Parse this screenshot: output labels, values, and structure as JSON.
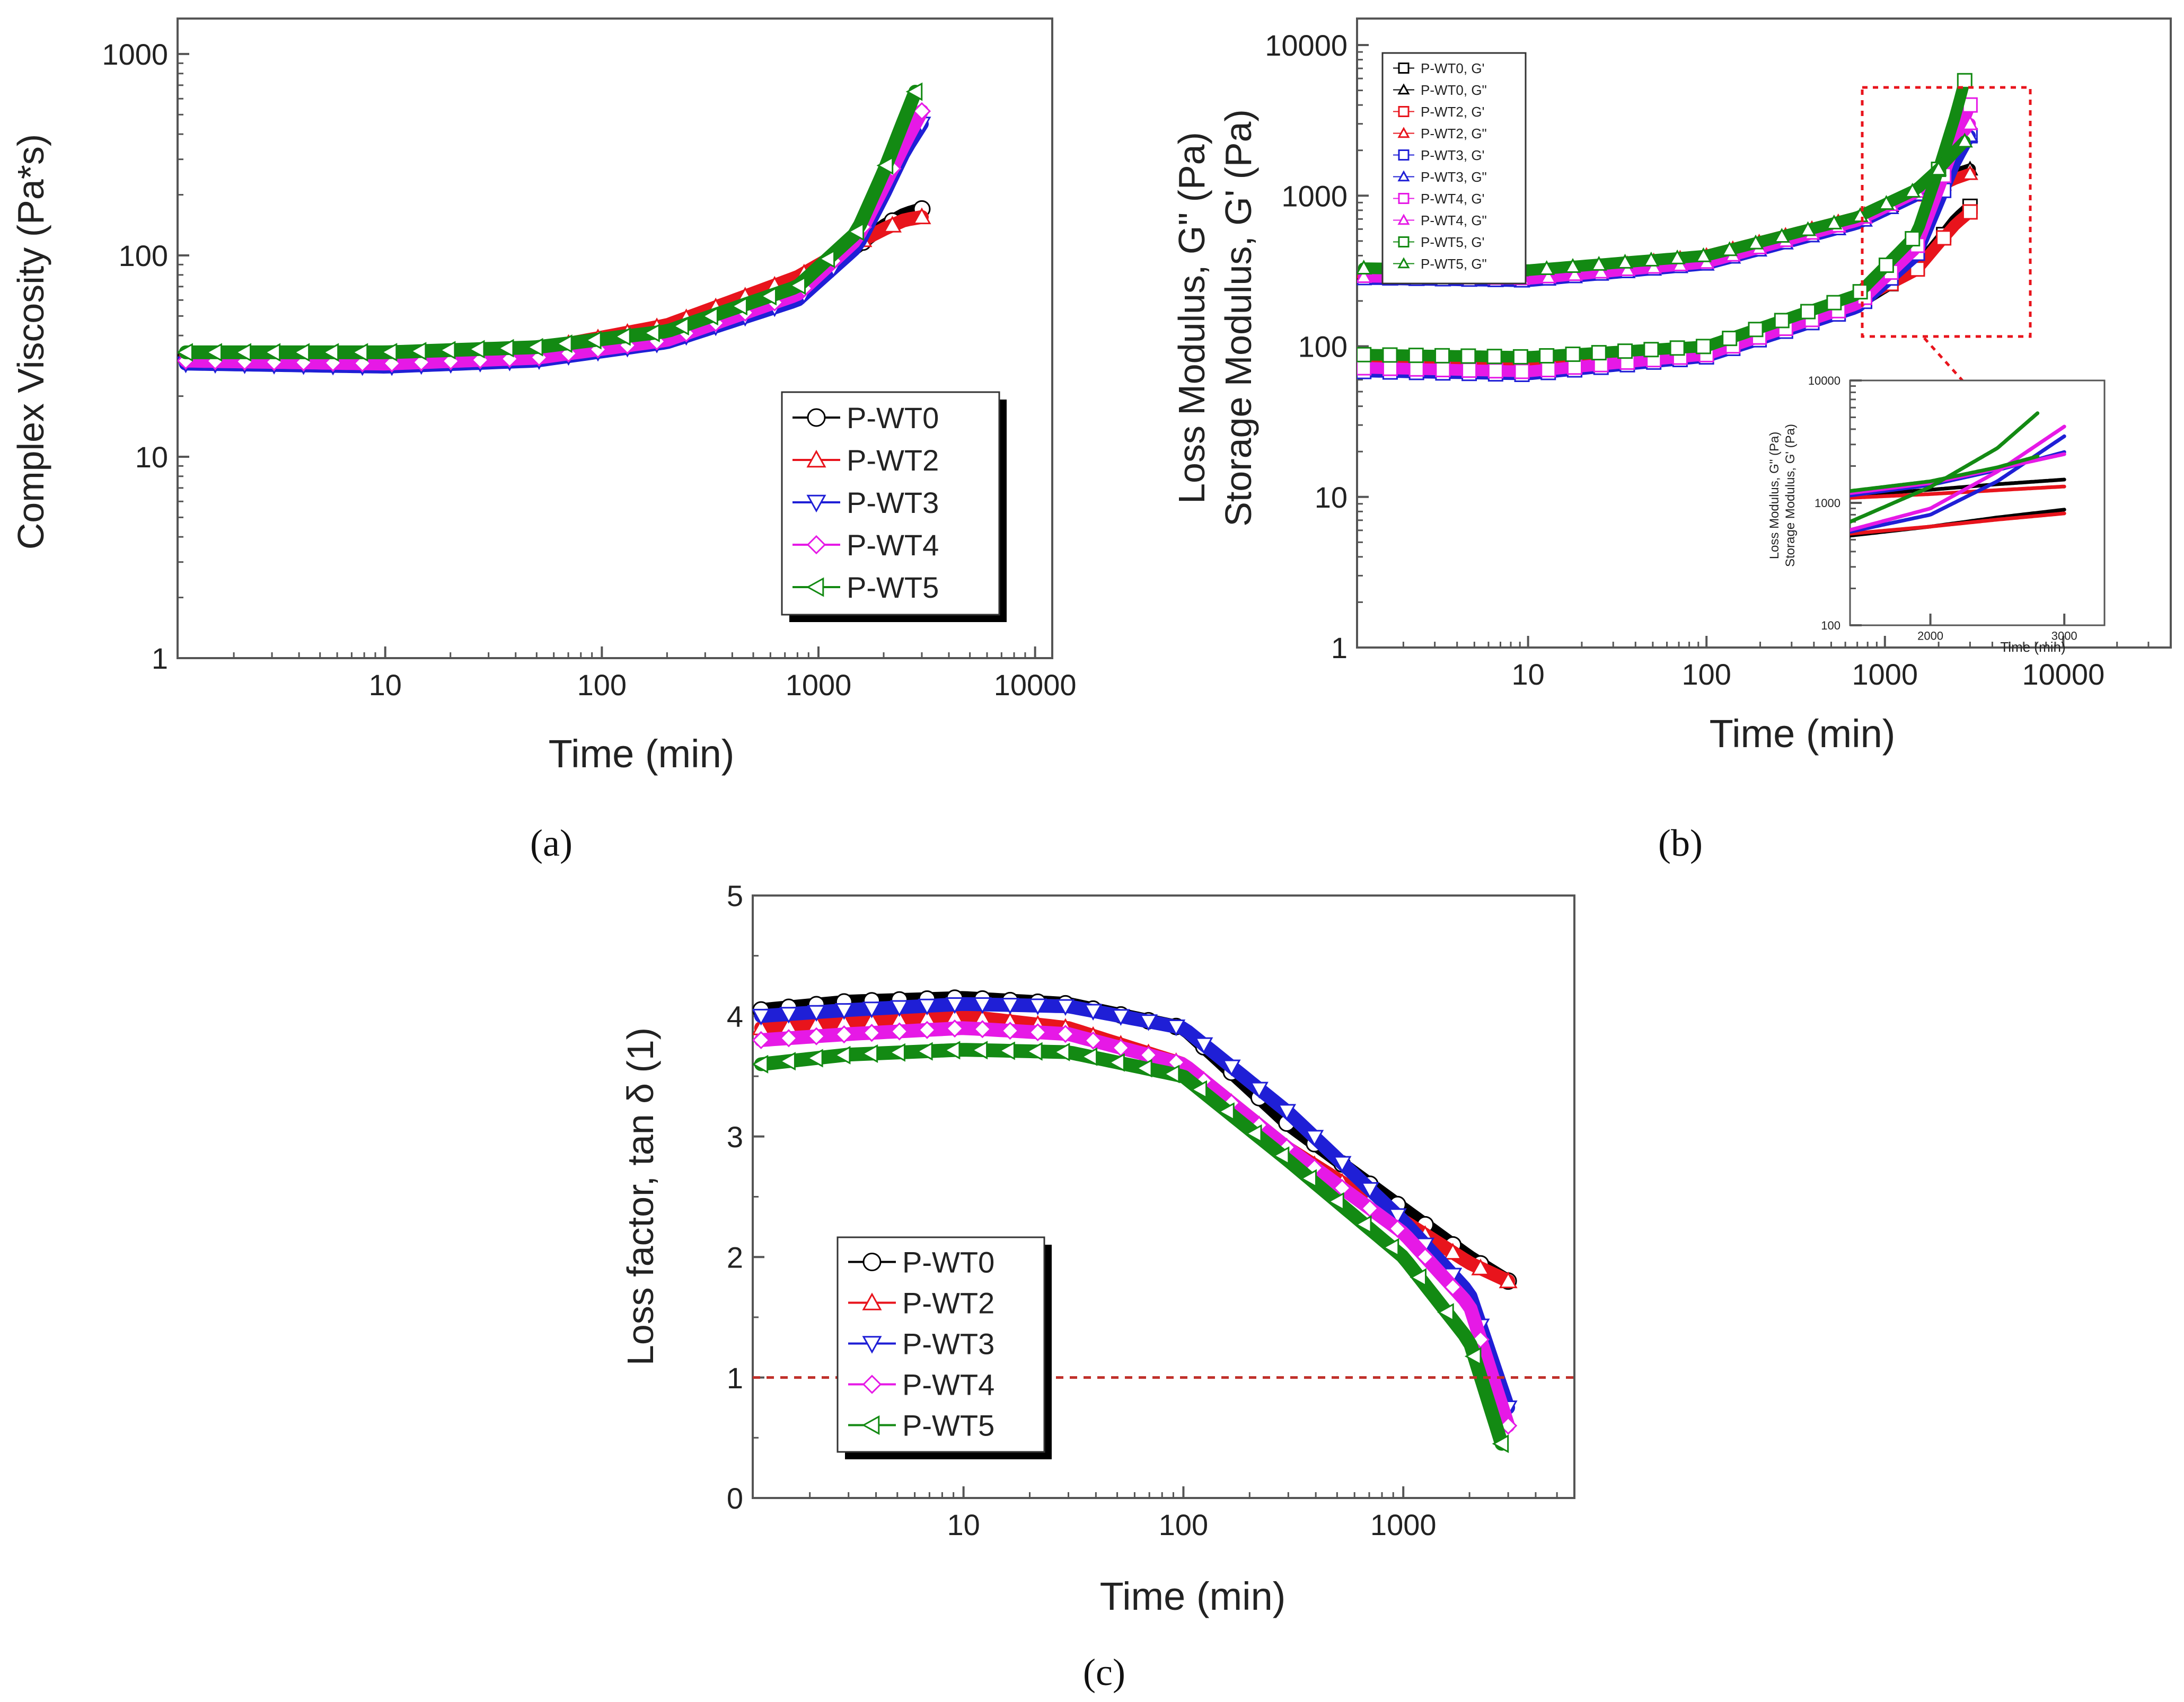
{
  "colors": {
    "P-WT0": "#000000",
    "P-WT2": "#e8141c",
    "P-WT3": "#1f1fd6",
    "P-WT4": "#e619e6",
    "P-WT5": "#138a13"
  },
  "markers": {
    "P-WT0": "circle",
    "P-WT2": "triangle-up",
    "P-WT3": "triangle-down",
    "P-WT4": "diamond",
    "P-WT5": "triangle-left"
  },
  "chart_data": [
    {
      "id": "a",
      "caption": "(a)",
      "type": "line",
      "xscale": "log",
      "yscale": "log",
      "xlabel": "Time (min)",
      "ylabel": "Complex Viscosity (Pa*s)",
      "xlim": [
        1.1,
        12000
      ],
      "ylim": [
        1,
        1500
      ],
      "xticks": [
        "10",
        "100",
        "1000",
        "10000"
      ],
      "yticks": [
        "1",
        "10",
        "100",
        "1000"
      ],
      "legend": [
        "P-WT0",
        "P-WT2",
        "P-WT3",
        "P-WT4",
        "P-WT5"
      ],
      "legend_position": "lower-right",
      "series": [
        {
          "name": "P-WT0",
          "x": [
            1.2,
            10,
            50,
            200,
            800,
            1500,
            2000,
            2500,
            3000
          ],
          "y": [
            31,
            30,
            32,
            40,
            68,
            110,
            140,
            160,
            170
          ]
        },
        {
          "name": "P-WT2",
          "x": [
            1.2,
            10,
            50,
            200,
            800,
            1500,
            2000,
            2500,
            3000
          ],
          "y": [
            32,
            31,
            34,
            45,
            78,
            115,
            135,
            150,
            155
          ]
        },
        {
          "name": "P-WT3",
          "x": [
            1.2,
            10,
            50,
            200,
            800,
            1500,
            2000,
            2500,
            3000
          ],
          "y": [
            29,
            28,
            30,
            37,
            60,
            110,
            200,
            330,
            450
          ]
        },
        {
          "name": "P-WT4",
          "x": [
            1.2,
            10,
            50,
            200,
            800,
            1500,
            2000,
            2500,
            3000
          ],
          "y": [
            30,
            29,
            31,
            38,
            64,
            120,
            220,
            360,
            520
          ]
        },
        {
          "name": "P-WT5",
          "x": [
            1.2,
            10,
            50,
            200,
            800,
            1500,
            2000,
            2500,
            2800
          ],
          "y": [
            33,
            33,
            35,
            42,
            70,
            130,
            260,
            480,
            650
          ]
        }
      ]
    },
    {
      "id": "b",
      "caption": "(b)",
      "type": "line",
      "xscale": "log",
      "yscale": "log",
      "xlabel": "Time (min)",
      "ylabel": [
        "Loss Modulus, G\" (Pa)",
        "Storage Modulus, G' (Pa)"
      ],
      "xlim": [
        1.1,
        40000
      ],
      "ylim": [
        1,
        15000
      ],
      "xticks": [
        "10",
        "100",
        "1000",
        "10000"
      ],
      "yticks": [
        "1",
        "10",
        "100",
        "1000",
        "10000"
      ],
      "legend": [
        "P-WT0, G'",
        "P-WT0, G\"",
        "P-WT2, G'",
        "P-WT2, G\"",
        "P-WT3, G'",
        "P-WT3, G\"",
        "P-WT4, G'",
        "P-WT4, G\"",
        "P-WT5, G'",
        "P-WT5, G\""
      ],
      "legend_position": "top-left",
      "series": [
        {
          "name": "P-WT0, G'",
          "modulus": "G'",
          "base": "P-WT0",
          "x": [
            1.2,
            10,
            100,
            700,
            1500,
            2000,
            2500,
            3000
          ],
          "y": [
            75,
            70,
            90,
            190,
            330,
            500,
            700,
            850
          ]
        },
        {
          "name": "P-WT0, G\"",
          "modulus": "G\"",
          "base": "P-WT0",
          "x": [
            1.2,
            10,
            100,
            700,
            1500,
            2000,
            2500,
            3000
          ],
          "y": [
            300,
            290,
            380,
            700,
            1000,
            1200,
            1400,
            1500
          ]
        },
        {
          "name": "P-WT2, G'",
          "modulus": "G'",
          "base": "P-WT2",
          "x": [
            1.2,
            10,
            100,
            700,
            1500,
            2000,
            2500,
            3000
          ],
          "y": [
            78,
            73,
            95,
            200,
            320,
            480,
            650,
            780
          ]
        },
        {
          "name": "P-WT2, G\"",
          "modulus": "G\"",
          "base": "P-WT2",
          "x": [
            1.2,
            10,
            100,
            700,
            1500,
            2000,
            2500,
            3000
          ],
          "y": [
            310,
            300,
            400,
            720,
            1000,
            1150,
            1300,
            1400
          ]
        },
        {
          "name": "P-WT3, G'",
          "modulus": "G'",
          "base": "P-WT3",
          "x": [
            1.2,
            10,
            100,
            700,
            1500,
            2000,
            2500,
            3000
          ],
          "y": [
            68,
            65,
            85,
            180,
            400,
            900,
            1700,
            2500
          ]
        },
        {
          "name": "P-WT3, G\"",
          "modulus": "G\"",
          "base": "P-WT3",
          "x": [
            1.2,
            10,
            100,
            700,
            1500,
            2000,
            2500,
            3000
          ],
          "y": [
            280,
            270,
            350,
            650,
            1000,
            1400,
            2000,
            2500
          ]
        },
        {
          "name": "P-WT4, G'",
          "modulus": "G'",
          "base": "P-WT4",
          "x": [
            1.2,
            10,
            100,
            700,
            1500,
            2000,
            2500,
            3000
          ],
          "y": [
            72,
            68,
            88,
            190,
            450,
            1100,
            2300,
            4000
          ]
        },
        {
          "name": "P-WT4, G\"",
          "modulus": "G\"",
          "base": "P-WT4",
          "x": [
            1.2,
            10,
            100,
            700,
            1500,
            2000,
            2500,
            3000
          ],
          "y": [
            290,
            280,
            360,
            680,
            1050,
            1500,
            2300,
            3000
          ]
        },
        {
          "name": "P-WT5, G'",
          "modulus": "G'",
          "base": "P-WT5",
          "x": [
            1.2,
            10,
            100,
            700,
            1500,
            2000,
            2500,
            2800
          ],
          "y": [
            88,
            85,
            100,
            220,
            550,
            1500,
            3500,
            5800
          ]
        },
        {
          "name": "P-WT5, G\"",
          "modulus": "G\"",
          "base": "P-WT5",
          "x": [
            1.2,
            10,
            100,
            700,
            1500,
            2000,
            2500,
            2800
          ],
          "y": [
            330,
            320,
            400,
            720,
            1100,
            1500,
            2000,
            2300
          ]
        }
      ],
      "annotation": "dashed red box around the terminal region with arrow pointing to inset",
      "inset": {
        "xscale": "linear",
        "yscale": "log",
        "xlabel": "Time (min)",
        "ylabel": [
          "Loss Modulus, G\" (Pa)",
          "Storage Modulus, G' (Pa)"
        ],
        "xlim": [
          1400,
          3300
        ],
        "ylim": [
          100,
          10000
        ],
        "xticks": [
          "2000",
          "3000"
        ],
        "yticks": [
          "100",
          "1000",
          "10000"
        ],
        "series": [
          {
            "name": "P-WT0, G'",
            "x": [
              1400,
              2000,
              2500,
              3000
            ],
            "y": [
              540,
              640,
              760,
              880
            ]
          },
          {
            "name": "P-WT0, G\"",
            "x": [
              1400,
              2000,
              2500,
              3000
            ],
            "y": [
              1150,
              1280,
              1420,
              1550
            ]
          },
          {
            "name": "P-WT2, G'",
            "x": [
              1400,
              2000,
              2500,
              3000
            ],
            "y": [
              560,
              640,
              730,
              820
            ]
          },
          {
            "name": "P-WT2, G\"",
            "x": [
              1400,
              2000,
              2500,
              3000
            ],
            "y": [
              1100,
              1180,
              1270,
              1360
            ]
          },
          {
            "name": "P-WT3, G'",
            "x": [
              1400,
              2000,
              2500,
              3000
            ],
            "y": [
              580,
              800,
              1500,
              3500
            ]
          },
          {
            "name": "P-WT3, G\"",
            "x": [
              1400,
              2000,
              2500,
              3000
            ],
            "y": [
              1150,
              1400,
              1850,
              2600
            ]
          },
          {
            "name": "P-WT4, G'",
            "x": [
              1400,
              2000,
              2500,
              3000
            ],
            "y": [
              600,
              900,
              1800,
              4200
            ]
          },
          {
            "name": "P-WT4, G\"",
            "x": [
              1400,
              2000,
              2500,
              3000
            ],
            "y": [
              1200,
              1450,
              1900,
              2500
            ]
          },
          {
            "name": "P-WT5, G'",
            "x": [
              1400,
              2000,
              2500,
              2800
            ],
            "y": [
              700,
              1350,
              2800,
              5400
            ]
          },
          {
            "name": "P-WT5, G\"",
            "x": [
              1400,
              2000,
              2500,
              2800
            ],
            "y": [
              1250,
              1500,
              1950,
              2400
            ]
          }
        ]
      }
    },
    {
      "id": "c",
      "caption": "(c)",
      "type": "line",
      "xscale": "log",
      "yscale": "linear",
      "xlabel": "Time (min)",
      "ylabel": "Loss factor, tan δ (1)",
      "xlim": [
        1.1,
        6000
      ],
      "ylim": [
        0,
        5
      ],
      "xticks": [
        "10",
        "100",
        "1000"
      ],
      "yticks": [
        "0",
        "1",
        "2",
        "3",
        "4",
        "5"
      ],
      "reference_line": {
        "y": 1,
        "style": "dashed",
        "color": "#c0302a"
      },
      "legend": [
        "P-WT0",
        "P-WT2",
        "P-WT3",
        "P-WT4",
        "P-WT5"
      ],
      "legend_position": "lower-left",
      "series": [
        {
          "name": "P-WT0",
          "x": [
            1.2,
            3,
            10,
            30,
            100,
            300,
            1000,
            2000,
            3000
          ],
          "y": [
            4.05,
            4.12,
            4.15,
            4.1,
            3.9,
            3.1,
            2.4,
            2.0,
            1.8
          ]
        },
        {
          "name": "P-WT2",
          "x": [
            1.2,
            3,
            10,
            30,
            100,
            300,
            1000,
            2000,
            3000
          ],
          "y": [
            3.9,
            3.95,
            4.0,
            3.9,
            3.6,
            2.9,
            2.3,
            1.95,
            1.8
          ]
        },
        {
          "name": "P-WT3",
          "x": [
            1.2,
            3,
            10,
            30,
            100,
            300,
            1000,
            2000,
            3000
          ],
          "y": [
            4.0,
            4.05,
            4.1,
            4.08,
            3.9,
            3.2,
            2.3,
            1.7,
            0.75
          ]
        },
        {
          "name": "P-WT4",
          "x": [
            1.2,
            3,
            10,
            30,
            100,
            300,
            1000,
            2000,
            3000
          ],
          "y": [
            3.8,
            3.85,
            3.9,
            3.85,
            3.6,
            2.9,
            2.2,
            1.6,
            0.6
          ]
        },
        {
          "name": "P-WT5",
          "x": [
            1.2,
            3,
            10,
            30,
            100,
            300,
            1000,
            2000,
            2800
          ],
          "y": [
            3.6,
            3.68,
            3.72,
            3.7,
            3.5,
            2.8,
            2.0,
            1.3,
            0.45
          ]
        }
      ]
    }
  ]
}
